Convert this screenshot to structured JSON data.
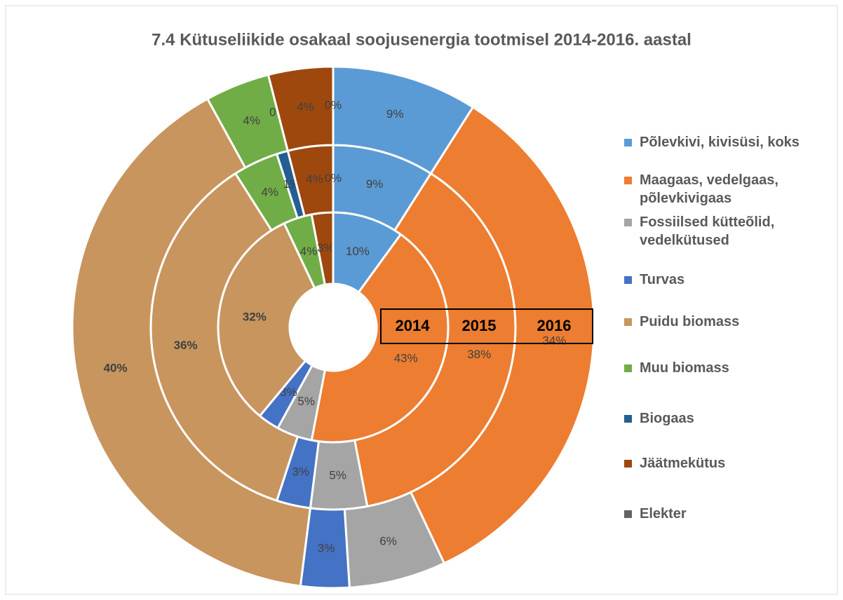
{
  "chart_data": {
    "type": "donut",
    "title": "7.4 Kütuseliikide osakaal soojusenergia tootmisel 2014-2016. aastal",
    "categories": [
      "Põlevkivi, kivisüsi, koks",
      "Maagaas, vedelgaas, põlevkivigaas",
      "Fossiilsed kütteõlid, vedelkütused",
      "Turvas",
      "Puidu biomass",
      "Muu biomass",
      "Biogaas",
      "Jäätmekütus",
      "Elekter"
    ],
    "colors": [
      "#5b9bd5",
      "#ed7d31",
      "#a5a5a5",
      "#4472c4",
      "#c8955f",
      "#70ad47",
      "#255e91",
      "#9e480e",
      "#636363"
    ],
    "series": [
      {
        "name": "2014",
        "values": [
          10,
          43,
          5,
          3,
          32,
          4,
          0,
          3,
          0
        ],
        "value_labels": [
          "10%",
          "43%",
          "5%",
          "3%",
          "32%",
          "4%",
          null,
          "3%",
          null
        ]
      },
      {
        "name": "2015",
        "values": [
          9,
          38,
          5,
          3,
          36,
          4,
          1,
          4,
          0
        ],
        "value_labels": [
          "9%",
          "38%",
          "5%",
          "3%",
          "36%",
          "4%",
          "1%",
          "4%",
          "0%"
        ]
      },
      {
        "name": "2016",
        "values": [
          9,
          34,
          6,
          3,
          40,
          4,
          0,
          4,
          0
        ],
        "value_labels": [
          "9%",
          "34%",
          "6%",
          "3%",
          "40%",
          "4%",
          "0%",
          "4%",
          "0%"
        ]
      }
    ],
    "legend": "right"
  }
}
